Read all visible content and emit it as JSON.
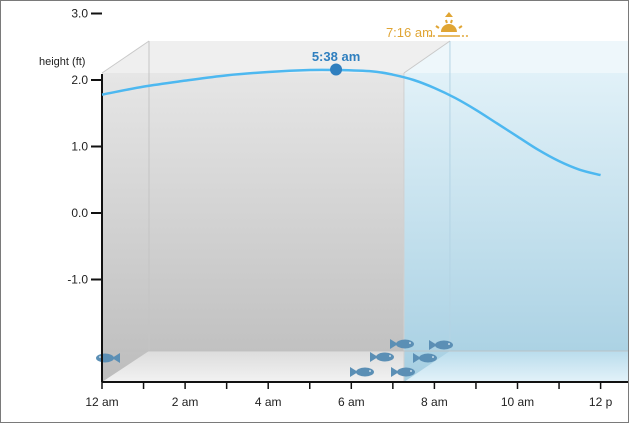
{
  "chart_data": {
    "type": "line",
    "ylabel": "height (ft)",
    "ylim": [
      -1.6,
      3.0
    ],
    "xlim_hours": [
      0,
      12
    ],
    "y_ticks": [
      3.0,
      2.0,
      1.0,
      0.0,
      -1.0
    ],
    "y_tick_labels": [
      "3.0",
      "2.0",
      "1.0",
      "0.0",
      "-1.0"
    ],
    "x_ticks_hours": [
      0,
      2,
      4,
      6,
      8,
      10,
      12
    ],
    "x_tick_labels": [
      "12 am",
      "2 am",
      "4 am",
      "6 am",
      "8 am",
      "10 am",
      "12 p"
    ],
    "series": [
      {
        "x_hours": [
          0,
          1,
          2,
          3,
          4,
          5,
          5.633,
          6.5,
          7,
          7.5,
          8,
          8.5,
          9,
          9.5,
          10,
          10.5,
          11,
          11.5,
          12
        ],
        "values": [
          1.78,
          1.9,
          1.99,
          2.07,
          2.12,
          2.15,
          2.15,
          2.13,
          2.08,
          2.0,
          1.88,
          1.73,
          1.55,
          1.35,
          1.15,
          0.95,
          0.78,
          0.65,
          0.57
        ]
      }
    ],
    "annotations": [
      {
        "label": "5:38 am",
        "x_hours": 5.633,
        "value": 2.15,
        "kind": "high-tide-marker"
      },
      {
        "label": "7:16 am",
        "x_hours": 7.267,
        "kind": "sunrise"
      }
    ],
    "daylight_start_hours": 7.267,
    "colors": {
      "curve": "#4db8f0",
      "marker": "#2f7fbf",
      "night_fill": "#cdcdcd",
      "day_fill": "#c8e3f0",
      "sunrise": "#e0a534",
      "fish": "#5b8fb5"
    },
    "grid": false
  }
}
